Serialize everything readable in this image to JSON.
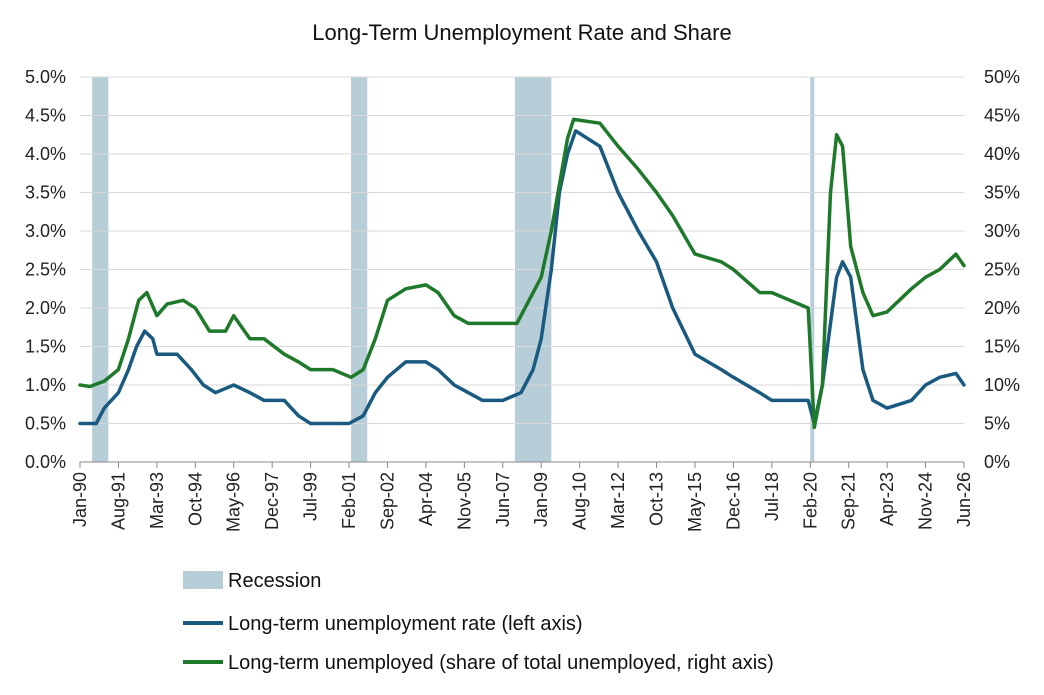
{
  "chart_data": {
    "type": "line",
    "title": "Long-Term Unemployment Rate and Share",
    "x_ticks": [
      "Jan-90",
      "Aug-91",
      "Mar-93",
      "Oct-94",
      "May-96",
      "Dec-97",
      "Jul-99",
      "Feb-01",
      "Sep-02",
      "Apr-04",
      "Nov-05",
      "Jun-07",
      "Jan-09",
      "Aug-10",
      "Mar-12",
      "Oct-13",
      "May-15",
      "Dec-16",
      "Jul-18",
      "Feb-20",
      "Sep-21",
      "Apr-23",
      "Nov-24",
      "Jun-26"
    ],
    "x_range": [
      "1990-01",
      "2026-06"
    ],
    "y_left": {
      "ticks": [
        "0.0%",
        "0.5%",
        "1.0%",
        "1.5%",
        "2.0%",
        "2.5%",
        "3.0%",
        "3.5%",
        "4.0%",
        "4.5%",
        "5.0%"
      ],
      "range": [
        0,
        5
      ]
    },
    "y_right": {
      "ticks": [
        "0%",
        "5%",
        "10%",
        "15%",
        "20%",
        "25%",
        "30%",
        "35%",
        "40%",
        "45%",
        "50%"
      ],
      "range": [
        0,
        50
      ]
    },
    "grid": "horizontal",
    "legend_position": "bottom",
    "recessions": [
      {
        "start": "1990-07",
        "end": "1991-03"
      },
      {
        "start": "2001-03",
        "end": "2001-11"
      },
      {
        "start": "2007-12",
        "end": "2009-06"
      },
      {
        "start": "2020-02",
        "end": "2020-04"
      }
    ],
    "legend": [
      {
        "label": "Recession",
        "color": "#b7cdd8",
        "kind": "box"
      },
      {
        "label": "Long-term unemployment rate (left axis)",
        "color": "#1a5a80",
        "kind": "line"
      },
      {
        "label": "Long-term unemployed (share of total unemployed, right axis)",
        "color": "#1e7a2a",
        "kind": "line"
      }
    ],
    "series": [
      {
        "name": "Long-term unemployment rate (left axis)",
        "axis": "left",
        "color": "#1a5a80",
        "points": [
          [
            "1990-01",
            0.5
          ],
          [
            "1990-09",
            0.5
          ],
          [
            "1991-01",
            0.7
          ],
          [
            "1991-08",
            0.9
          ],
          [
            "1992-01",
            1.2
          ],
          [
            "1992-05",
            1.5
          ],
          [
            "1992-09",
            1.7
          ],
          [
            "1993-01",
            1.6
          ],
          [
            "1993-03",
            1.4
          ],
          [
            "1994-01",
            1.4
          ],
          [
            "1994-08",
            1.2
          ],
          [
            "1995-02",
            1.0
          ],
          [
            "1995-08",
            0.9
          ],
          [
            "1996-05",
            1.0
          ],
          [
            "1997-01",
            0.9
          ],
          [
            "1997-08",
            0.8
          ],
          [
            "1998-06",
            0.8
          ],
          [
            "1999-01",
            0.6
          ],
          [
            "1999-07",
            0.5
          ],
          [
            "2000-06",
            0.5
          ],
          [
            "2001-02",
            0.5
          ],
          [
            "2001-09",
            0.6
          ],
          [
            "2002-03",
            0.9
          ],
          [
            "2002-09",
            1.1
          ],
          [
            "2003-06",
            1.3
          ],
          [
            "2004-04",
            1.3
          ],
          [
            "2004-10",
            1.2
          ],
          [
            "2005-06",
            1.0
          ],
          [
            "2006-01",
            0.9
          ],
          [
            "2006-08",
            0.8
          ],
          [
            "2007-06",
            0.8
          ],
          [
            "2008-03",
            0.9
          ],
          [
            "2008-09",
            1.2
          ],
          [
            "2009-01",
            1.6
          ],
          [
            "2009-06",
            2.5
          ],
          [
            "2009-10",
            3.5
          ],
          [
            "2010-02",
            4.0
          ],
          [
            "2010-06",
            4.3
          ],
          [
            "2011-06",
            4.1
          ],
          [
            "2012-03",
            3.5
          ],
          [
            "2013-01",
            3.0
          ],
          [
            "2013-10",
            2.6
          ],
          [
            "2014-06",
            2.0
          ],
          [
            "2015-05",
            1.4
          ],
          [
            "2016-06",
            1.2
          ],
          [
            "2016-12",
            1.1
          ],
          [
            "2018-01",
            0.9
          ],
          [
            "2018-07",
            0.8
          ],
          [
            "2020-01",
            0.8
          ],
          [
            "2020-04",
            0.5
          ],
          [
            "2020-08",
            1.0
          ],
          [
            "2021-03",
            2.4
          ],
          [
            "2021-06",
            2.6
          ],
          [
            "2021-10",
            2.4
          ],
          [
            "2022-04",
            1.2
          ],
          [
            "2022-09",
            0.8
          ],
          [
            "2023-04",
            0.7
          ],
          [
            "2024-04",
            0.8
          ],
          [
            "2024-11",
            1.0
          ],
          [
            "2025-06",
            1.1
          ],
          [
            "2026-02",
            1.15
          ],
          [
            "2026-06",
            1.0
          ]
        ]
      },
      {
        "name": "Long-term unemployed (share of total unemployed, right axis)",
        "axis": "right",
        "color": "#1e7a2a",
        "points": [
          [
            "1990-01",
            10.0
          ],
          [
            "1990-06",
            9.8
          ],
          [
            "1991-01",
            10.5
          ],
          [
            "1991-08",
            12.0
          ],
          [
            "1992-01",
            16.0
          ],
          [
            "1992-06",
            21.0
          ],
          [
            "1992-10",
            22.0
          ],
          [
            "1993-03",
            19.0
          ],
          [
            "1993-08",
            20.5
          ],
          [
            "1994-04",
            21.0
          ],
          [
            "1994-10",
            20.0
          ],
          [
            "1995-05",
            17.0
          ],
          [
            "1996-01",
            17.0
          ],
          [
            "1996-05",
            19.0
          ],
          [
            "1997-01",
            16.0
          ],
          [
            "1997-08",
            16.0
          ],
          [
            "1998-06",
            14.0
          ],
          [
            "1999-01",
            13.0
          ],
          [
            "1999-07",
            12.0
          ],
          [
            "2000-06",
            12.0
          ],
          [
            "2001-03",
            11.0
          ],
          [
            "2001-09",
            12.0
          ],
          [
            "2002-03",
            16.0
          ],
          [
            "2002-09",
            21.0
          ],
          [
            "2003-06",
            22.5
          ],
          [
            "2004-04",
            23.0
          ],
          [
            "2004-10",
            22.0
          ],
          [
            "2005-06",
            19.0
          ],
          [
            "2006-01",
            18.0
          ],
          [
            "2007-06",
            18.0
          ],
          [
            "2008-01",
            18.0
          ],
          [
            "2008-09",
            22.0
          ],
          [
            "2009-01",
            24.0
          ],
          [
            "2009-06",
            30.0
          ],
          [
            "2009-10",
            36.0
          ],
          [
            "2010-02",
            42.0
          ],
          [
            "2010-05",
            44.5
          ],
          [
            "2011-06",
            44.0
          ],
          [
            "2012-03",
            41.0
          ],
          [
            "2013-01",
            38.0
          ],
          [
            "2013-10",
            35.0
          ],
          [
            "2014-06",
            32.0
          ],
          [
            "2015-05",
            27.0
          ],
          [
            "2016-06",
            26.0
          ],
          [
            "2016-12",
            25.0
          ],
          [
            "2018-01",
            22.0
          ],
          [
            "2018-07",
            22.0
          ],
          [
            "2020-01",
            20.0
          ],
          [
            "2020-04",
            4.5
          ],
          [
            "2020-08",
            10.0
          ],
          [
            "2020-12",
            35.0
          ],
          [
            "2021-03",
            42.5
          ],
          [
            "2021-06",
            41.0
          ],
          [
            "2021-10",
            28.0
          ],
          [
            "2022-04",
            22.0
          ],
          [
            "2022-09",
            19.0
          ],
          [
            "2023-04",
            19.5
          ],
          [
            "2024-04",
            22.5
          ],
          [
            "2024-11",
            24.0
          ],
          [
            "2025-06",
            25.0
          ],
          [
            "2026-02",
            27.0
          ],
          [
            "2026-06",
            25.5
          ]
        ]
      }
    ]
  }
}
